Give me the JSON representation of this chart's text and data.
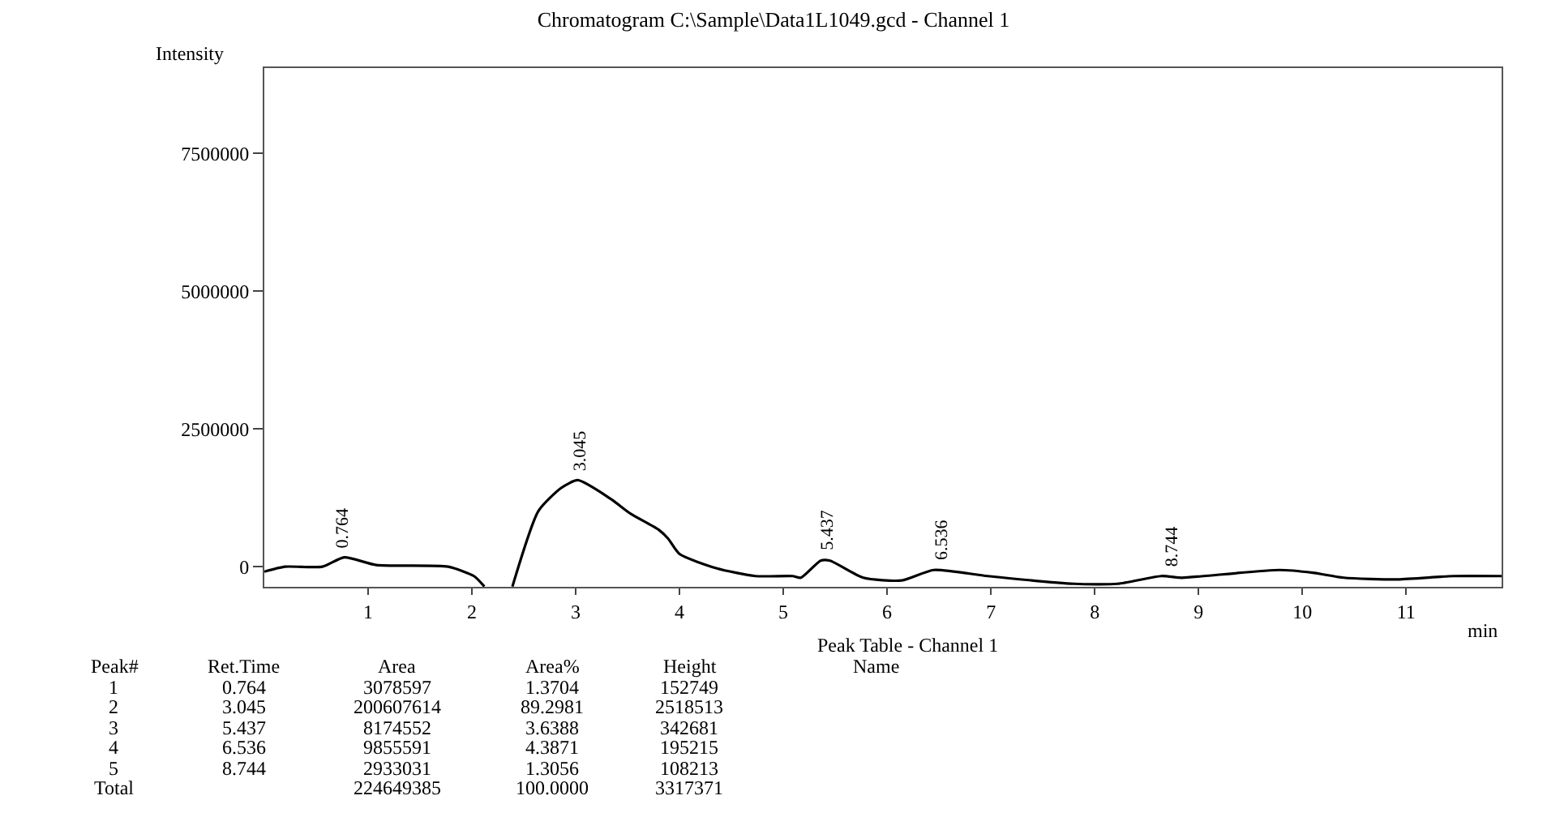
{
  "chart_data": {
    "type": "line",
    "title": "Chromatogram C:\\Sample\\Data1L1049.gcd - Channel 1",
    "xlabel": "min",
    "ylabel": "Intensity",
    "x": [
      0,
      0.2,
      0.56,
      0.77,
      1.08,
      1.77,
      2.02,
      2.12,
      null,
      2.39,
      2.64,
      2.86,
      3.02,
      3.33,
      3.53,
      3.8,
      3.89,
      4.0,
      4.36,
      4.73,
      5.09,
      5.17,
      5.36,
      5.45,
      5.77,
      6.14,
      6.45,
      6.97,
      7.8,
      8.22,
      8.64,
      8.84,
      9.05,
      9.78,
      10.1,
      10.4,
      10.92,
      11.45,
      11.92
    ],
    "series": [
      {
        "color": "#000000",
        "values": [
          -90000,
          0,
          0,
          170000,
          30000,
          0,
          -170000,
          -360000,
          null,
          -360000,
          1010000,
          1430000,
          1570000,
          1240000,
          960000,
          670000,
          510000,
          230000,
          -30000,
          -170000,
          -170000,
          -200000,
          110000,
          110000,
          -200000,
          -250000,
          -60000,
          -170000,
          -310000,
          -310000,
          -170000,
          -200000,
          -170000,
          -60000,
          -110000,
          -200000,
          -230000,
          -170000,
          -170000
        ]
      }
    ],
    "xlim": [
      0,
      11.92
    ],
    "xticks": [
      1,
      2,
      3,
      4,
      5,
      6,
      7,
      8,
      9,
      10,
      11
    ],
    "ylim": [
      -365000,
      9050000
    ],
    "yticks": [
      0,
      2500000,
      5000000,
      7500000
    ],
    "marker": "none",
    "line_style": "solid",
    "annotations": [
      {
        "text": "0.764",
        "x": 0.764,
        "y": 170000
      },
      {
        "text": "3.045",
        "x": 3.045,
        "y": 1570000
      },
      {
        "text": "5.437",
        "x": 5.437,
        "y": 110000
      },
      {
        "text": "6.536",
        "x": 6.536,
        "y": -60000
      },
      {
        "text": "8.744",
        "x": 8.744,
        "y": -170000
      },
      "Peak Table - Channel 1",
      "Peak# Ret.Time Area Area% Height Name",
      "1 0.764 3078597 1.3704 152749",
      "2 3.045 200607614 89.2981 2518513",
      "3 5.437 8174552 3.6388 342681",
      "4 6.536 9855591 4.3871 195215",
      "5 8.744 2933031 1.3056 108213",
      "Total 224649385 100.0000 3317371"
    ]
  }
}
